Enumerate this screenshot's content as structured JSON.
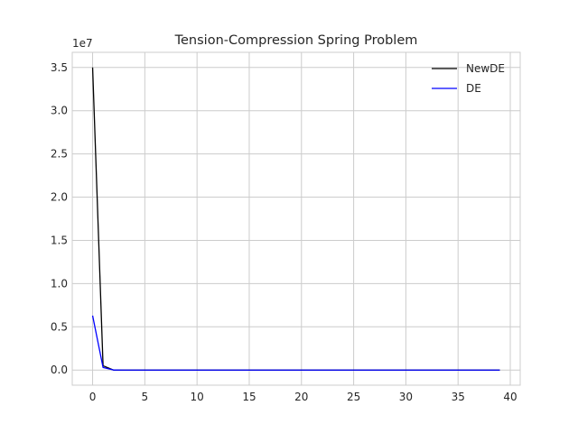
{
  "chart_data": {
    "type": "line",
    "title": "Tension-Compression Spring Problem",
    "xlabel": "",
    "ylabel": "",
    "y_offset_label": "1e7",
    "xlim": [
      -1.95,
      40.95
    ],
    "ylim": [
      -1750000,
      36750000
    ],
    "x_ticks": [
      0,
      5,
      10,
      15,
      20,
      25,
      30,
      35,
      40
    ],
    "x_tick_labels": [
      "0",
      "5",
      "10",
      "15",
      "20",
      "25",
      "30",
      "35",
      "40"
    ],
    "y_ticks": [
      0,
      5000000,
      10000000,
      15000000,
      20000000,
      25000000,
      30000000,
      35000000
    ],
    "y_tick_labels": [
      "0.0",
      "0.5",
      "1.0",
      "1.5",
      "2.0",
      "2.5",
      "3.0",
      "3.5"
    ],
    "grid": true,
    "legend_position": "top-right",
    "series": [
      {
        "name": "NewDE",
        "color": "#000000",
        "x": [
          0,
          1,
          2,
          3,
          4,
          5,
          6,
          7,
          8,
          9,
          10,
          11,
          12,
          13,
          14,
          15,
          16,
          17,
          18,
          19,
          20,
          21,
          22,
          23,
          24,
          25,
          26,
          27,
          28,
          29,
          30,
          31,
          32,
          33,
          34,
          35,
          36,
          37,
          38,
          39
        ],
        "y": [
          35000000,
          500000,
          5000,
          0,
          0,
          0,
          0,
          0,
          0,
          0,
          0,
          0,
          0,
          0,
          0,
          0,
          0,
          0,
          0,
          0,
          0,
          0,
          0,
          0,
          0,
          0,
          0,
          0,
          0,
          0,
          0,
          0,
          0,
          0,
          0,
          0,
          0,
          0,
          0,
          0
        ]
      },
      {
        "name": "DE",
        "color": "#0000ff",
        "x": [
          0,
          1,
          2,
          3,
          4,
          5,
          6,
          7,
          8,
          9,
          10,
          11,
          12,
          13,
          14,
          15,
          16,
          17,
          18,
          19,
          20,
          21,
          22,
          23,
          24,
          25,
          26,
          27,
          28,
          29,
          30,
          31,
          32,
          33,
          34,
          35,
          36,
          37,
          38,
          39
        ],
        "y": [
          6300000,
          300000,
          5000,
          0,
          0,
          0,
          0,
          0,
          0,
          0,
          0,
          0,
          0,
          0,
          0,
          0,
          0,
          0,
          0,
          0,
          0,
          0,
          0,
          0,
          0,
          0,
          0,
          0,
          0,
          0,
          0,
          0,
          0,
          0,
          0,
          0,
          0,
          0,
          0,
          0
        ]
      }
    ]
  }
}
